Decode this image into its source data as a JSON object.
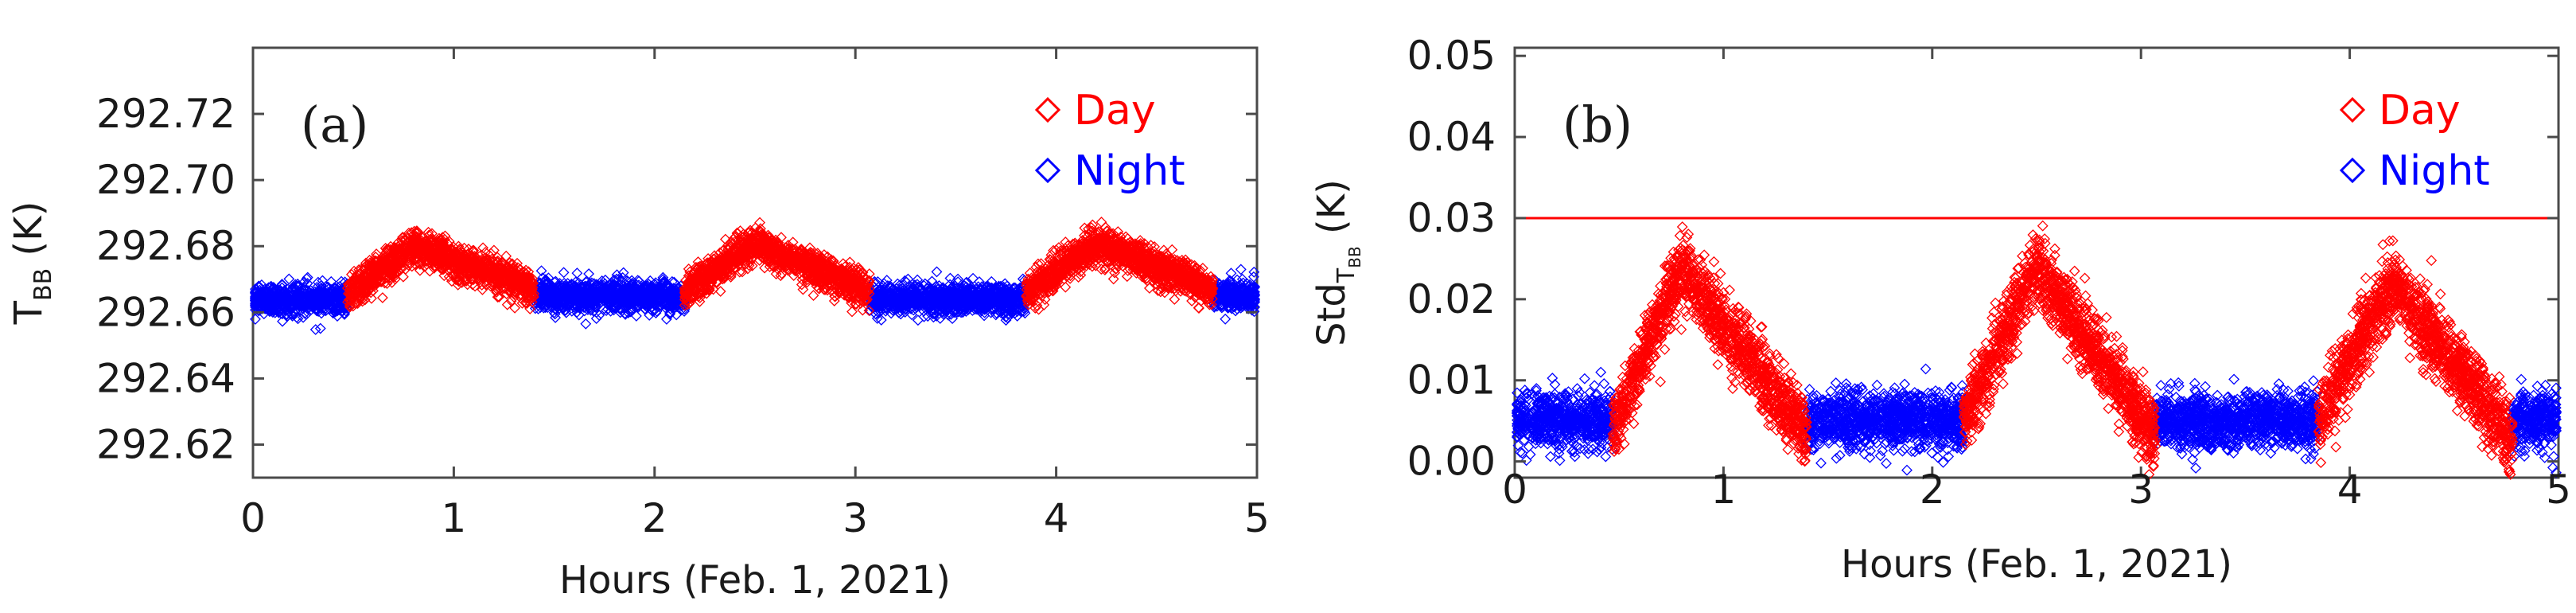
{
  "colors": {
    "day": "#ff0000",
    "night": "#0000ff",
    "axis": "#4a4a4a",
    "threshold": "#ff0000"
  },
  "chart_data": [
    {
      "id": "a",
      "type": "scatter",
      "panel_label": "(a)",
      "xlabel": "Hours (Feb. 1, 2021)",
      "ylabel": "T",
      "ylabel_sub": "BB",
      "ylabel_unit": " (K)",
      "xlim": [
        0,
        5
      ],
      "ylim": [
        292.61,
        292.74
      ],
      "xticks": [
        0,
        1,
        2,
        3,
        4,
        5
      ],
      "xtick_labels": [
        "0",
        "1",
        "2",
        "3",
        "4",
        "5"
      ],
      "yticks": [
        292.62,
        292.64,
        292.66,
        292.68,
        292.7,
        292.72
      ],
      "ytick_labels": [
        "292.62",
        "292.64",
        "292.66",
        "292.68",
        "292.70",
        "292.72"
      ],
      "marker": "diamond",
      "legend": [
        {
          "name": "Day",
          "color": "day"
        },
        {
          "name": "Night",
          "color": "night"
        }
      ],
      "legend_position": "top-right",
      "series": [
        {
          "name": "Night",
          "color": "night",
          "noise": 0.0022,
          "segments": [
            [
              [
                0.0,
                292.664
              ],
              [
                0.47,
                292.664
              ]
            ],
            [
              [
                1.4,
                292.665
              ],
              [
                2.15,
                292.665
              ]
            ],
            [
              [
                3.07,
                292.664
              ],
              [
                3.85,
                292.664
              ]
            ],
            [
              [
                4.78,
                292.665
              ],
              [
                5.0,
                292.665
              ]
            ]
          ]
        },
        {
          "name": "Day",
          "color": "day",
          "noise": 0.0025,
          "segments": [
            [
              [
                0.47,
                292.665
              ],
              [
                0.8,
                292.68
              ],
              [
                1.4,
                292.667
              ]
            ],
            [
              [
                2.15,
                292.666
              ],
              [
                2.5,
                292.681
              ],
              [
                3.07,
                292.666
              ]
            ],
            [
              [
                3.85,
                292.666
              ],
              [
                4.2,
                292.681
              ],
              [
                4.78,
                292.667
              ]
            ]
          ]
        }
      ]
    },
    {
      "id": "b",
      "type": "scatter",
      "panel_label": "(b)",
      "xlabel": "Hours (Feb. 1, 2021)",
      "ylabel": "Std",
      "ylabel_sub": "T",
      "ylabel_subsub": "BB",
      "ylabel_unit": " (K)",
      "xlim": [
        0,
        5
      ],
      "ylim": [
        -0.002,
        0.051
      ],
      "xticks": [
        0,
        1,
        2,
        3,
        4,
        5
      ],
      "xtick_labels": [
        "0",
        "1",
        "2",
        "3",
        "4",
        "5"
      ],
      "yticks": [
        0.0,
        0.01,
        0.02,
        0.03,
        0.04,
        0.05
      ],
      "ytick_labels": [
        "0.00",
        "0.01",
        "0.02",
        "0.03",
        "0.04",
        "0.05"
      ],
      "threshold": 0.03,
      "marker": "diamond",
      "legend": [
        {
          "name": "Day",
          "color": "day"
        },
        {
          "name": "Night",
          "color": "night"
        }
      ],
      "legend_position": "top-right",
      "series": [
        {
          "name": "Night",
          "color": "night",
          "noise": 0.0017,
          "segments": [
            [
              [
                0.0,
                0.005
              ],
              [
                0.47,
                0.005
              ]
            ],
            [
              [
                1.4,
                0.005
              ],
              [
                2.15,
                0.005
              ]
            ],
            [
              [
                3.07,
                0.005
              ],
              [
                3.85,
                0.005
              ]
            ],
            [
              [
                4.78,
                0.005
              ],
              [
                5.0,
                0.005
              ]
            ]
          ]
        },
        {
          "name": "Day",
          "color": "day",
          "noise": 0.0022,
          "segments": [
            [
              [
                0.47,
                0.004
              ],
              [
                0.8,
                0.024
              ],
              [
                1.4,
                0.003
              ]
            ],
            [
              [
                2.15,
                0.005
              ],
              [
                2.5,
                0.024
              ],
              [
                3.07,
                0.003
              ]
            ],
            [
              [
                3.85,
                0.005
              ],
              [
                4.2,
                0.022
              ],
              [
                4.78,
                0.003
              ]
            ]
          ]
        }
      ]
    }
  ]
}
